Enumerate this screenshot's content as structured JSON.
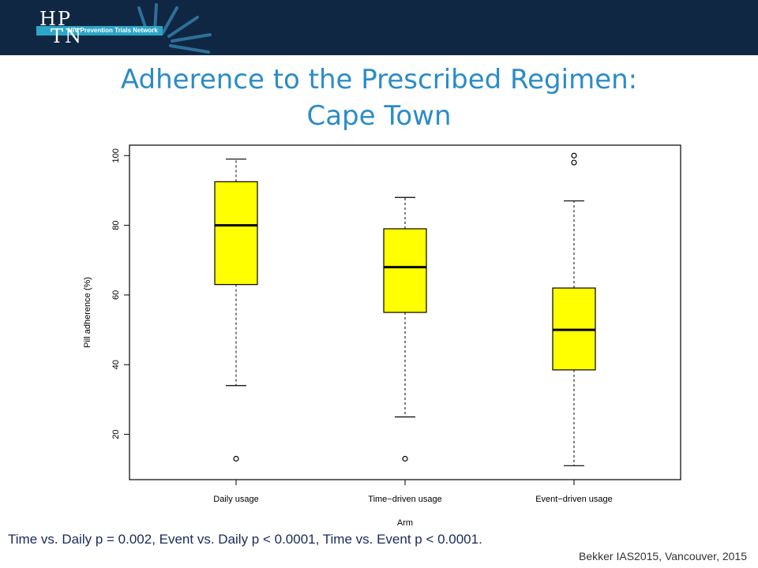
{
  "logo": {
    "text": "HIV Prevention Trials Network",
    "lettering_top": "HP",
    "lettering_bottom": "TN"
  },
  "title": {
    "line1": "Adherence to the Prescribed Regimen:",
    "line2": "Cape Town"
  },
  "footnote": "Time vs. Daily p = 0.002, Event vs. Daily p < 0.0001, Time vs. Event p < 0.0001.",
  "citation": "Bekker IAS2015, Vancouver, 2015",
  "colors": {
    "header_band": "#0f2742",
    "title": "#2b8cc8",
    "box_fill": "#ffff00",
    "logo_accent": "#2ba6c7"
  },
  "chart_data": {
    "type": "boxplot",
    "xlabel": "Arm",
    "ylabel": "Pill adherence (%)",
    "ylim": [
      7,
      103
    ],
    "yticks": [
      20,
      40,
      60,
      80,
      100
    ],
    "categories": [
      "Daily usage",
      "Time−driven usage",
      "Event−driven usage"
    ],
    "boxes": [
      {
        "whisker_low": 34,
        "q1": 63,
        "median": 80,
        "q3": 92.5,
        "whisker_high": 99,
        "outliers": [
          13
        ]
      },
      {
        "whisker_low": 25,
        "q1": 55,
        "median": 68,
        "q3": 79,
        "whisker_high": 88,
        "outliers": [
          13
        ]
      },
      {
        "whisker_low": 11,
        "q1": 38.5,
        "median": 50,
        "q3": 62,
        "whisker_high": 87,
        "outliers": [
          98,
          100
        ]
      }
    ],
    "grid": false,
    "legend": "none"
  }
}
